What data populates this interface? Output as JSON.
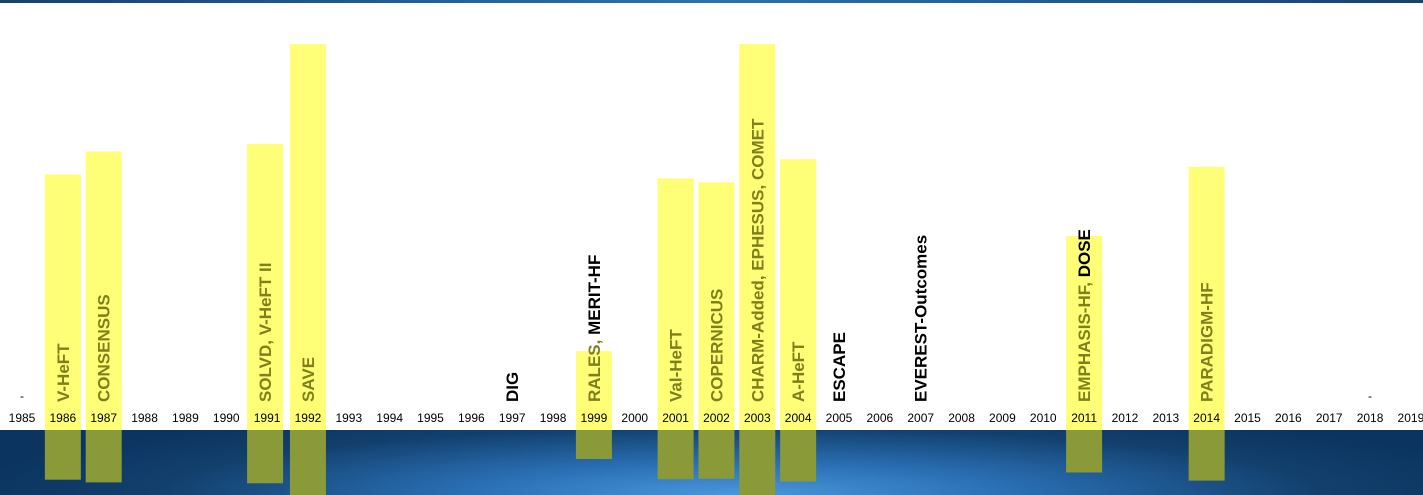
{
  "chart_data": {
    "type": "bar",
    "title": "",
    "xlabel": "",
    "ylabel": "",
    "x_ticks": [
      "1985",
      "1986",
      "1987",
      "1988",
      "1989",
      "1990",
      "1991",
      "1992",
      "1993",
      "1994",
      "1995",
      "1996",
      "1997",
      "1998",
      "1999",
      "2000",
      "2001",
      "2002",
      "2003",
      "2004",
      "2005",
      "2006",
      "2007",
      "2008",
      "2009",
      "2010",
      "2011",
      "2012",
      "2013",
      "2014",
      "2015",
      "2016",
      "2017",
      "2018",
      "2019"
    ],
    "grid": false,
    "legend": "none",
    "colors": {
      "bar_fill": "#ffff77",
      "bar_fill_dark": "#8a9a38",
      "label_on_bar": "#7f7f1c",
      "label_plain": "#000000",
      "band_dark": "#0b3460",
      "band_light": "#4a97dc"
    },
    "markers": [
      {
        "year": "1985",
        "symbol": "-"
      },
      {
        "year": "2018",
        "symbol": "-"
      }
    ],
    "trials": [
      {
        "year": "1986",
        "slot": 0,
        "value": 0.66,
        "highlight": true,
        "labels": [
          {
            "text": "V-HeFT",
            "highlighted": true
          }
        ]
      },
      {
        "year": "1987",
        "slot": 0,
        "value": 0.72,
        "highlight": true,
        "labels": [
          {
            "text": "CONSENSUS",
            "highlighted": true
          }
        ]
      },
      {
        "year": "1991",
        "slot": -1,
        "value": 0.74,
        "highlight": true,
        "labels": [
          {
            "text": "SOLVD, V-HeFT II",
            "highlighted": true
          }
        ]
      },
      {
        "year": "1992",
        "slot": 0,
        "value": 1.0,
        "highlight": true,
        "labels": [
          {
            "text": "SAVE",
            "highlighted": true
          }
        ]
      },
      {
        "year": "1997",
        "slot": 0,
        "value": 0,
        "highlight": false,
        "labels": [
          {
            "text": "DIG",
            "highlighted": false
          }
        ]
      },
      {
        "year": "1999",
        "slot": 0,
        "value": 0.2,
        "highlight": true,
        "labels": [
          {
            "text": "RALES,",
            "highlighted": true
          },
          {
            "text": " MERIT-HF",
            "highlighted": false
          }
        ]
      },
      {
        "year": "2001",
        "slot": 0,
        "value": 0.65,
        "highlight": true,
        "labels": [
          {
            "text": "Val-HeFT",
            "highlighted": true
          }
        ]
      },
      {
        "year": "2002",
        "slot": 0,
        "value": 0.64,
        "highlight": true,
        "labels": [
          {
            "text": "COPERNICUS",
            "highlighted": true
          }
        ]
      },
      {
        "year": "2003",
        "slot": 0,
        "value": 1.0,
        "highlight": true,
        "labels": [
          {
            "text": "CHARM-Added, EPHESUS, COMET",
            "highlighted": true
          }
        ]
      },
      {
        "year": "2004",
        "slot": 0,
        "value": 0.7,
        "highlight": true,
        "labels": [
          {
            "text": "A-HeFT",
            "highlighted": true
          }
        ]
      },
      {
        "year": "2005",
        "slot": 0,
        "value": 0,
        "highlight": false,
        "labels": [
          {
            "text": "ESCAPE",
            "highlighted": false
          }
        ]
      },
      {
        "year": "2007",
        "slot": 0,
        "value": 0,
        "highlight": false,
        "labels": [
          {
            "text": "EVEREST-Outcomes",
            "highlighted": false
          }
        ]
      },
      {
        "year": "2011",
        "slot": 0,
        "value": 0.5,
        "highlight": true,
        "labels": [
          {
            "text": "EMPHASIS-HF,",
            "highlighted": true
          },
          {
            "text": " DOSE",
            "highlighted": false
          }
        ]
      },
      {
        "year": "2014",
        "slot": 0,
        "value": 0.68,
        "highlight": true,
        "labels": [
          {
            "text": "PARADIGM-HF",
            "highlighted": true
          }
        ]
      }
    ]
  }
}
